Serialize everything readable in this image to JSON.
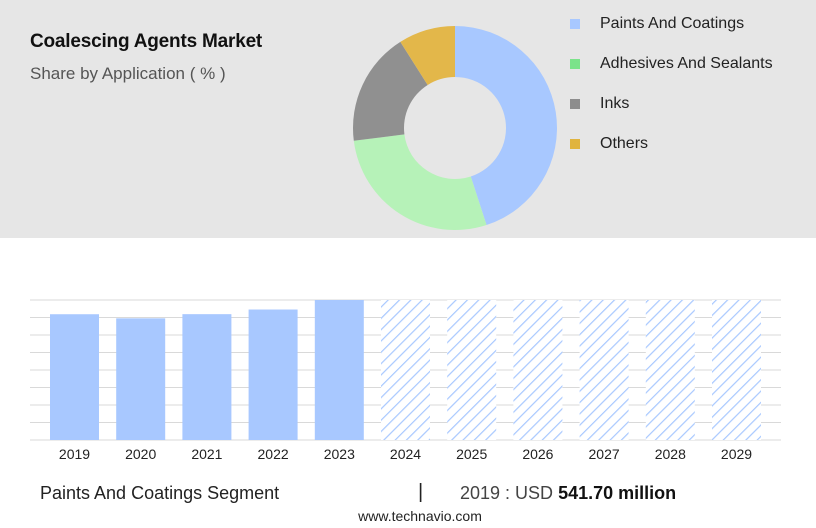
{
  "header": {
    "title": "Coalescing Agents Market",
    "subtitle": "Share by Application ( % )"
  },
  "chart_data": [
    {
      "type": "pie",
      "variant": "donut",
      "legend_position": "right",
      "slices": [
        {
          "label": "Paints And Coatings",
          "value": 45,
          "color": "#a8c8ff"
        },
        {
          "label": "Adhesives And Sealants",
          "value": 28,
          "color": "#b6f2b8"
        },
        {
          "label": "Inks",
          "value": 18,
          "color": "#909090"
        },
        {
          "label": "Others",
          "value": 9,
          "color": "#e3b74a"
        }
      ],
      "legend": [
        {
          "label": "Paints And Coatings",
          "color": "#a8c8ff",
          "swatch": "#a8c8ff"
        },
        {
          "label": "Adhesives And Sealants",
          "color": "#b6f2b8",
          "swatch": "#7be38a"
        },
        {
          "label": "Inks",
          "color": "#909090",
          "swatch": "#8d8d8d"
        },
        {
          "label": "Others",
          "color": "#e3b74a",
          "swatch": "#e0b43f"
        }
      ]
    },
    {
      "type": "bar",
      "categories": [
        "2019",
        "2020",
        "2021",
        "2022",
        "2023",
        "2024",
        "2025",
        "2026",
        "2027",
        "2028",
        "2029"
      ],
      "values": [
        541.7,
        524,
        542,
        562,
        603,
        null,
        null,
        null,
        null,
        null,
        null
      ],
      "forecast_categories": [
        "2024",
        "2025",
        "2026",
        "2027",
        "2028",
        "2029"
      ],
      "ylim": [
        0,
        603
      ],
      "grid": true,
      "color": "#a8c8ff",
      "forecast_color": "#a8c8ff"
    }
  ],
  "footer": {
    "segment": "Paints And Coatings Segment",
    "separator": "|",
    "year_label": "2019 : USD",
    "value": "541.70 million",
    "source": "www.technavio.com"
  }
}
